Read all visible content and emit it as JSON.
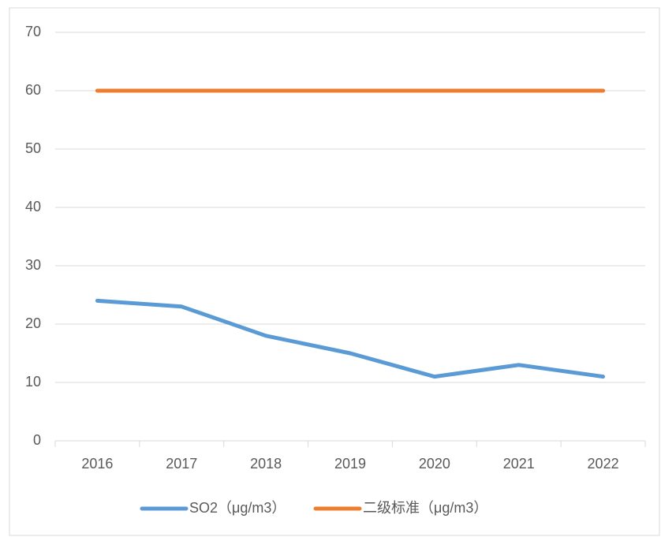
{
  "chart_data": {
    "type": "line",
    "categories": [
      "2016",
      "2017",
      "2018",
      "2019",
      "2020",
      "2021",
      "2022"
    ],
    "series": [
      {
        "name": "SO2（μg/m3）",
        "color": "#5b9bd5",
        "values": [
          24,
          23,
          18,
          15,
          11,
          13,
          11
        ]
      },
      {
        "name": "二级标准（μg/m3）",
        "color": "#ed7d31",
        "values": [
          60,
          60,
          60,
          60,
          60,
          60,
          60
        ]
      }
    ],
    "ylim": [
      0,
      70
    ],
    "yticks": [
      0,
      10,
      20,
      30,
      40,
      50,
      60,
      70
    ],
    "grid": true,
    "legend": "bottom"
  }
}
